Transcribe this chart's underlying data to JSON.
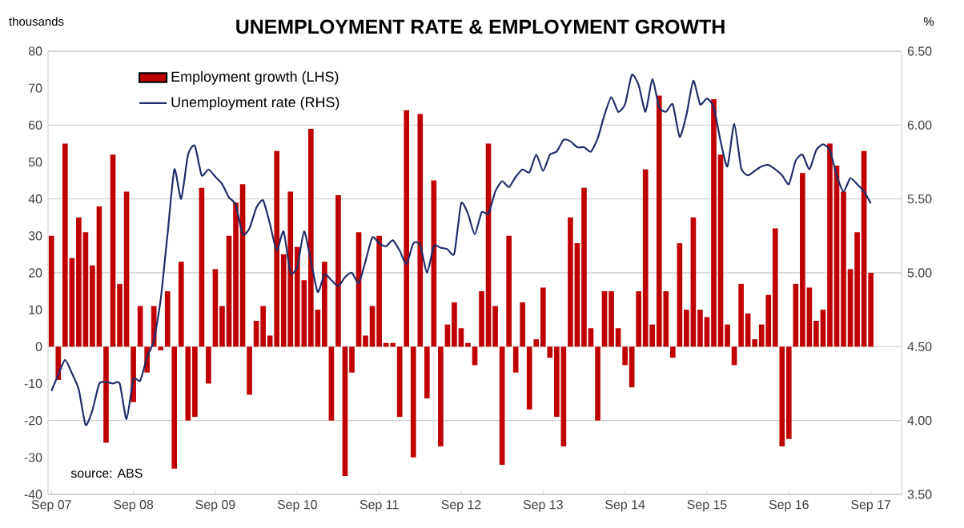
{
  "chart_data": {
    "type": "bar",
    "title": "UNEMPLOYMENT RATE & EMPLOYMENT GROWTH",
    "ylabel": "thousands",
    "y2label": "%",
    "annotations": [
      "source: ABS"
    ],
    "categories": [
      "Sep 07",
      null,
      null,
      null,
      null,
      null,
      null,
      null,
      null,
      null,
      null,
      null,
      "Sep 08",
      null,
      null,
      null,
      null,
      null,
      null,
      null,
      null,
      null,
      null,
      null,
      "Sep 09",
      null,
      null,
      null,
      null,
      null,
      null,
      null,
      null,
      null,
      null,
      null,
      "Sep 10",
      null,
      null,
      null,
      null,
      null,
      null,
      null,
      null,
      null,
      null,
      null,
      "Sep 11",
      null,
      null,
      null,
      null,
      null,
      null,
      null,
      null,
      null,
      null,
      null,
      "Sep 12",
      null,
      null,
      null,
      null,
      null,
      null,
      null,
      null,
      null,
      null,
      null,
      "Sep 13",
      null,
      null,
      null,
      null,
      null,
      null,
      null,
      null,
      null,
      null,
      null,
      "Sep 14",
      null,
      null,
      null,
      null,
      null,
      null,
      null,
      null,
      null,
      null,
      null,
      "Sep 15",
      null,
      null,
      null,
      null,
      null,
      null,
      null,
      null,
      null,
      null,
      null,
      "Sep 16",
      null,
      null,
      null,
      null,
      null,
      null,
      null,
      null,
      null,
      null,
      null,
      "Sep 17"
    ],
    "series": [
      {
        "name": "Employment growth (LHS)",
        "color": "#c00000",
        "values": [
          30,
          -9,
          55,
          24,
          35,
          31,
          22,
          38,
          -26,
          52,
          17,
          42,
          -15,
          11,
          -7,
          11,
          -1,
          15,
          -33,
          23,
          -20,
          -19,
          43,
          -10,
          21,
          11,
          30,
          39,
          44,
          -13,
          7,
          11,
          3,
          53,
          25,
          42,
          27,
          18,
          59,
          10,
          23,
          -20,
          41,
          -35,
          -7,
          31,
          3,
          11,
          30,
          1,
          1,
          -19,
          64,
          -30,
          63,
          -14,
          45,
          -27,
          6,
          12,
          5,
          1,
          -5,
          15,
          55,
          11,
          -32,
          30,
          -7,
          12,
          -17,
          2,
          16,
          -3,
          -19,
          -27,
          35,
          28,
          43,
          5,
          -20,
          15,
          15,
          5,
          -5,
          -11,
          15,
          48,
          6,
          68,
          15,
          -3,
          28,
          10,
          35,
          10,
          8,
          67,
          52,
          6,
          -5,
          17,
          9,
          2,
          6,
          14,
          32,
          -27,
          -25,
          17,
          47,
          16,
          7,
          10,
          55,
          49,
          42,
          21,
          31,
          53,
          20
        ]
      },
      {
        "name": "Unemployment rate (RHS)",
        "type": "line",
        "axis": "y2",
        "color": "#1f2d6b",
        "values": [
          4.2,
          4.31,
          4.41,
          4.32,
          4.21,
          3.97,
          4.07,
          4.25,
          4.26,
          4.25,
          4.25,
          4.01,
          4.28,
          4.27,
          4.43,
          4.54,
          4.82,
          5.26,
          5.7,
          5.5,
          5.8,
          5.86,
          5.66,
          5.7,
          5.65,
          5.6,
          5.51,
          5.46,
          5.26,
          5.3,
          5.44,
          5.49,
          5.33,
          5.15,
          5.28,
          5.0,
          5.04,
          5.28,
          5.08,
          4.87,
          4.99,
          4.95,
          4.91,
          4.97,
          5.0,
          4.93,
          5.08,
          5.24,
          5.2,
          5.18,
          5.22,
          5.15,
          5.06,
          5.2,
          5.19,
          5.0,
          5.18,
          5.17,
          5.16,
          5.13,
          5.47,
          5.4,
          5.26,
          5.41,
          5.4,
          5.55,
          5.62,
          5.58,
          5.65,
          5.7,
          5.68,
          5.8,
          5.69,
          5.8,
          5.82,
          5.9,
          5.89,
          5.85,
          5.85,
          5.82,
          5.91,
          6.07,
          6.19,
          6.09,
          6.14,
          6.34,
          6.27,
          6.09,
          6.31,
          6.12,
          6.09,
          6.14,
          5.92,
          6.07,
          6.3,
          6.14,
          6.18,
          6.12,
          5.89,
          5.72,
          6.01,
          5.71,
          5.66,
          5.69,
          5.72,
          5.73,
          5.7,
          5.66,
          5.6,
          5.76,
          5.8,
          5.7,
          5.83,
          5.87,
          5.83,
          5.66,
          5.55,
          5.64,
          5.6,
          5.55,
          5.47
        ]
      }
    ],
    "ylim": [
      -40,
      80
    ],
    "yticks": [
      -40,
      -30,
      -20,
      -10,
      0,
      10,
      20,
      30,
      40,
      50,
      60,
      70,
      80
    ],
    "y2lim": [
      3.5,
      6.5
    ],
    "y2ticks": [
      {
        "value": 3.5,
        "label": "3.50"
      },
      {
        "value": 4.0,
        "label": "4.00"
      },
      {
        "value": 4.5,
        "label": "4.50"
      },
      {
        "value": 5.0,
        "label": "5.00"
      },
      {
        "value": 5.5,
        "label": "5.50"
      },
      {
        "value": 6.0,
        "label": "6.00"
      },
      {
        "value": 6.5,
        "label": "6.50"
      }
    ],
    "grid": "y",
    "legend": "top left"
  }
}
